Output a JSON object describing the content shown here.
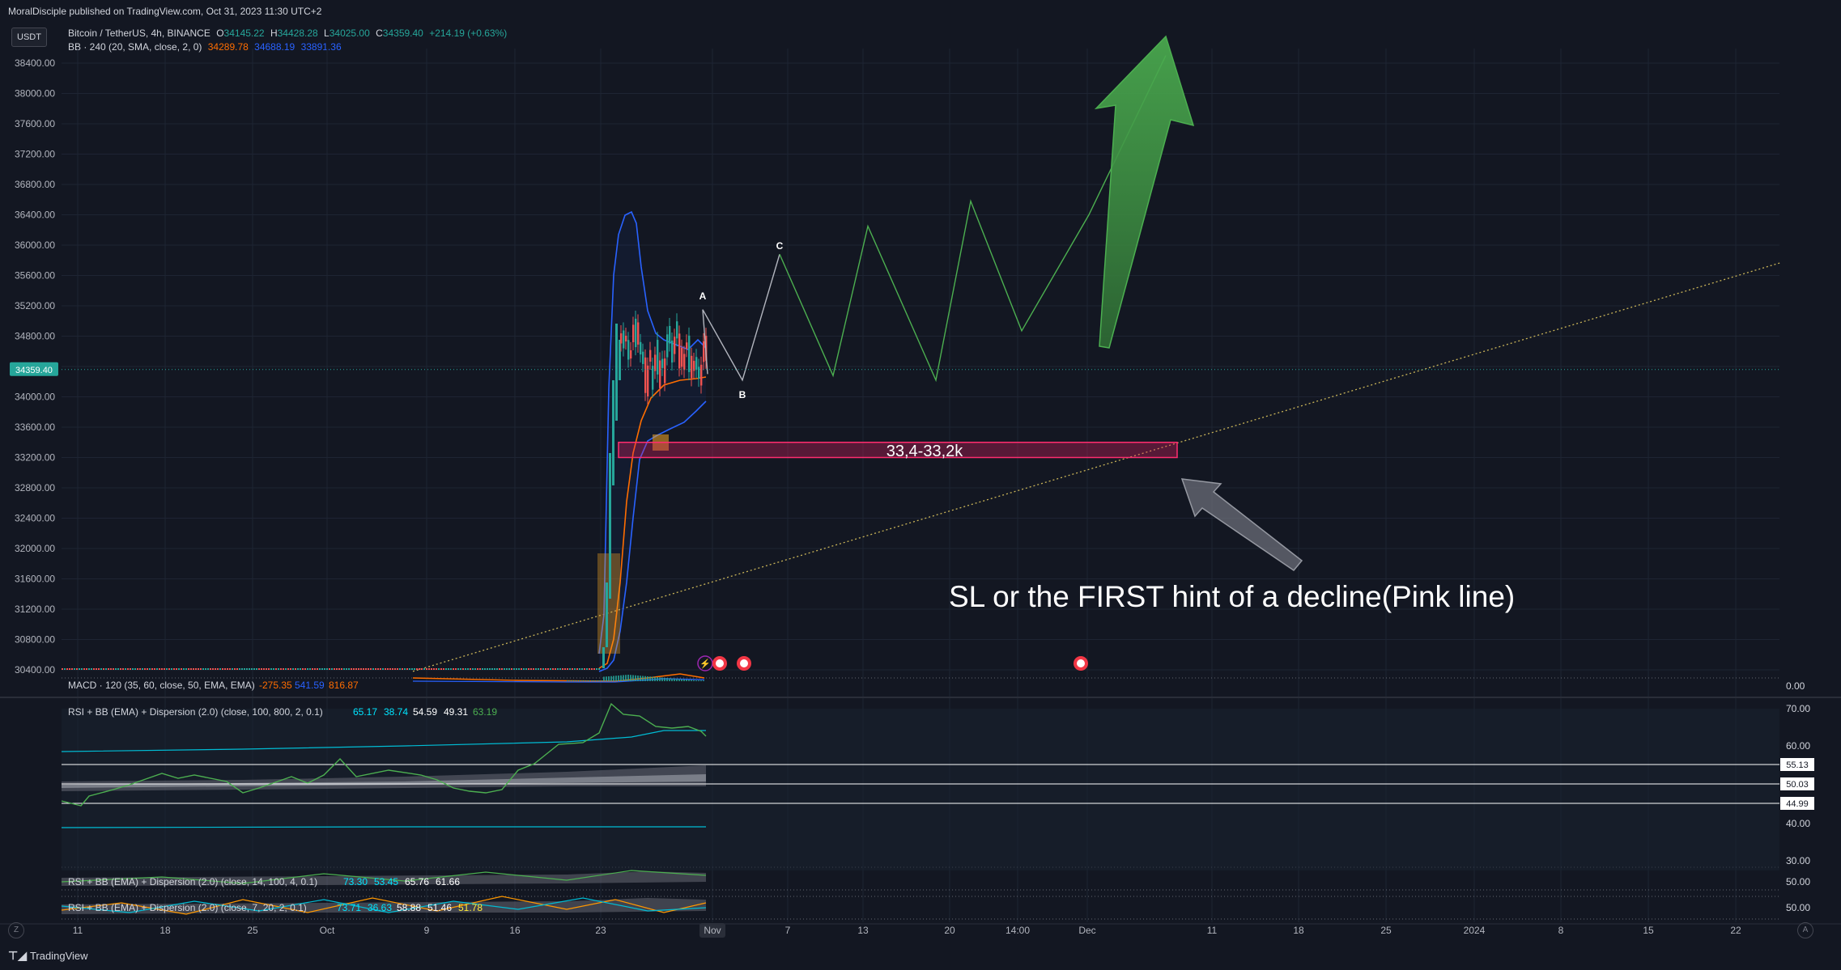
{
  "header": {
    "published": "MoralDisciple published on TradingView.com, Oct 31, 2023 11:30 UTC+2"
  },
  "legend": {
    "symbol": "Bitcoin / TetherUS, 4h, BINANCE",
    "o_label": "O",
    "o_value": "34145.22",
    "h_label": "H",
    "h_value": "34428.28",
    "l_label": "L",
    "l_value": "34025.00",
    "c_label": "C",
    "c_value": "34359.40",
    "change": "+214.19 (+0.63%)",
    "bb_label": "BB · 240 (20, SMA, close, 2, 0)",
    "bb_mid": "34289.78",
    "bb_upper": "34688.19",
    "bb_lower": "33891.36"
  },
  "currency_button": "USDT",
  "price_axis": {
    "labels": [
      "38400.00",
      "38000.00",
      "37600.00",
      "37200.00",
      "36800.00",
      "36400.00",
      "36000.00",
      "35600.00",
      "35200.00",
      "34800.00",
      "34400.00",
      "34000.00",
      "33600.00",
      "33200.00",
      "32800.00",
      "32400.00",
      "32000.00",
      "31600.00",
      "31200.00",
      "30800.00",
      "30400.00"
    ],
    "last_price": "34359.40"
  },
  "time_axis": {
    "labels": [
      "11",
      "18",
      "25",
      "Oct",
      "9",
      "16",
      "23",
      "Nov",
      "7",
      "13",
      "20",
      "14:00",
      "Dec",
      "11",
      "18",
      "25",
      "2024",
      "8",
      "15",
      "22"
    ]
  },
  "panes": {
    "macd": {
      "label": "MACD · 120 (35, 60, close, 50, EMA, EMA)",
      "v1": "-275.35",
      "v2": "541.59",
      "v3": "816.87",
      "axis": "0.00"
    },
    "rsi1": {
      "label": "RSI + BB (EMA) + Dispersion (2.0) (close, 100, 800, 2, 0.1)",
      "values": [
        "65.17",
        "38.74",
        "54.59",
        "49.31",
        "63.19"
      ],
      "axis": [
        "70.00",
        "60.00",
        "40.00",
        "30.00"
      ],
      "level_labels": [
        "55.13",
        "50.03",
        "44.99"
      ]
    },
    "rsi2": {
      "label": "RSI + BB (EMA) + Dispersion (2.0) (close, 14, 100, 4, 0.1)",
      "values": [
        "73.30",
        "53.45",
        "65.76",
        "61.66"
      ],
      "axis": "50.00"
    },
    "rsi3": {
      "label": "RSI + BB (EMA) + Dispersion (2.0) (close, 7, 20, 2, 0.1)",
      "values": [
        "73.71",
        "36.63",
        "58.88",
        "51.46",
        "51.78"
      ],
      "axis": "50.00"
    }
  },
  "annotations": {
    "zone_label": "33,4-33,2k",
    "sl_text": "SL or the FIRST hint of a decline(Pink line)",
    "wave_a": "A",
    "wave_b": "B",
    "wave_c": "C"
  },
  "footer": {
    "brand": "TradingView",
    "z_button": "Z",
    "a_button": "A"
  },
  "chart_data": {
    "type": "line",
    "title": "Bitcoin / TetherUS, 4h, BINANCE",
    "ylim": [
      30200,
      38600
    ],
    "projection_path": {
      "name": "",
      "points": [
        {
          "x": "Oct 31",
          "y": 35150
        },
        {
          "x": "Nov 2",
          "y": 34220
        },
        {
          "x": "Nov 5",
          "y": 35880
        },
        {
          "x": "Nov 11",
          "y": 34280
        },
        {
          "x": "Nov 14",
          "y": 36250
        },
        {
          "x": "Nov 21",
          "y": 34220
        },
        {
          "x": "Nov 24",
          "y": 36580
        },
        {
          "x": "Nov 27",
          "y": 34870
        },
        {
          "x": "Dec 1",
          "y": 36400
        },
        {
          "x": "Dec 6",
          "y": 38500
        }
      ]
    },
    "support_zone": {
      "low": 33200,
      "high": 33400
    },
    "trendline": {
      "from": {
        "x": "Oct 3",
        "y": 30380
      },
      "to": {
        "x": "Jan 25",
        "y": 35770
      }
    },
    "colors": {
      "background": "#131722",
      "projection": "#4caf50",
      "zone": "#e91e63",
      "trendline": "#c9b458",
      "bb_upper": "#2962ff",
      "bb_mid": "#ff6d00",
      "up_candle": "#26a69a",
      "down_candle": "#ef5350"
    }
  }
}
